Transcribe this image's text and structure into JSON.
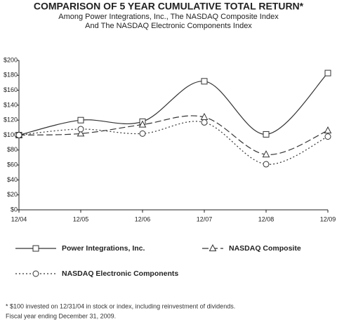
{
  "chart_data": {
    "type": "line",
    "title": "COMPARISON OF 5 YEAR CUMULATIVE TOTAL RETURN*",
    "subtitle": [
      "Among Power Integrations, Inc., The NASDAQ Composite Index",
      "And The NASDAQ Electronic Components Index"
    ],
    "categories": [
      "12/04",
      "12/05",
      "12/06",
      "12/07",
      "12/08",
      "12/09"
    ],
    "series": [
      {
        "name": "Power Integrations, Inc.",
        "color": "#333333",
        "style": "solid",
        "marker": "square",
        "values": [
          100,
          120,
          118,
          172,
          101,
          183
        ]
      },
      {
        "name": "NASDAQ Composite",
        "color": "#333333",
        "style": "dashed",
        "marker": "triangle",
        "values": [
          100,
          102,
          114,
          124,
          74,
          106
        ]
      },
      {
        "name": "NASDAQ Electronic Components",
        "color": "#333333",
        "style": "dotted",
        "marker": "circle",
        "values": [
          100,
          108,
          102,
          117,
          61,
          98
        ]
      }
    ],
    "ylim": [
      0,
      200
    ],
    "yticks": [
      {
        "value": 0,
        "label": "$0"
      },
      {
        "value": 20,
        "label": "$20"
      },
      {
        "value": 40,
        "label": "$40"
      },
      {
        "value": 60,
        "label": "$60"
      },
      {
        "value": 80,
        "label": "$80"
      },
      {
        "value": 100,
        "label": "$100"
      },
      {
        "value": 120,
        "label": "$120"
      },
      {
        "value": 140,
        "label": "$140"
      },
      {
        "value": 160,
        "label": "$160"
      },
      {
        "value": 180,
        "label": "$180"
      },
      {
        "value": 200,
        "label": "$200"
      }
    ],
    "grid": false,
    "notes": [
      "* $100 invested on 12/31/04 in stock or index, including reinvestment of dividends.",
      "Fiscal year ending December 31, 2009."
    ]
  }
}
